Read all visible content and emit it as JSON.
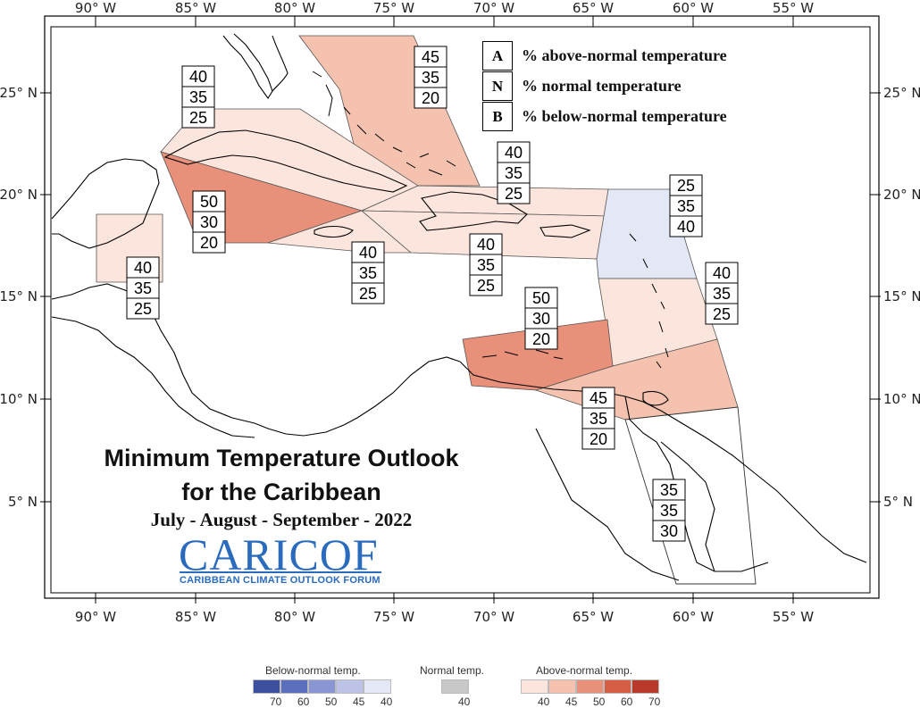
{
  "map": {
    "title_line1": "Minimum Temperature Outlook",
    "title_line2": "for the Caribbean",
    "period": "July - August - September - 2022",
    "logo_main": "CARICOF",
    "logo_sub": "CARIBBEAN CLIMATE OUTLOOK FORUM",
    "lon_labels": [
      "90° W",
      "85° W",
      "80° W",
      "75° W",
      "70° W",
      "65° W",
      "60° W",
      "55° W"
    ],
    "lat_labels": [
      "25° N",
      "20° N",
      "15° N",
      "10° N",
      "5° N"
    ],
    "key": [
      {
        "letter": "A",
        "text": "% above-normal temperature"
      },
      {
        "letter": "N",
        "text": "% normal temperature"
      },
      {
        "letter": "B",
        "text": "% below-normal temperature"
      }
    ],
    "legend": {
      "below_title": "Below-normal temp.",
      "normal_title": "Normal temp.",
      "above_title": "Above-normal temp.",
      "below_values": [
        "70",
        "60",
        "50",
        "45",
        "40"
      ],
      "normal_values": [
        "40"
      ],
      "above_values": [
        "40",
        "45",
        "50",
        "60",
        "70"
      ],
      "below_colors": [
        "#3b4f9e",
        "#5b6fbf",
        "#8a96d4",
        "#bcc3e6",
        "#e3e7f6"
      ],
      "normal_colors": [
        "#c8c8c8"
      ],
      "above_colors": [
        "#fbe5dc",
        "#f4c2ae",
        "#e8907a",
        "#d65e45",
        "#b83a2a"
      ]
    },
    "regions": [
      {
        "name": "bahamas",
        "values": [
          "45",
          "35",
          "20"
        ],
        "color": "#f4c2ae"
      },
      {
        "name": "cuba",
        "values": [
          "40",
          "35",
          "25"
        ],
        "color": "#fbe5dc"
      },
      {
        "name": "cayman-jamaica-sea",
        "values": [
          "50",
          "30",
          "20"
        ],
        "color": "#e8907a"
      },
      {
        "name": "belize",
        "values": [
          "40",
          "35",
          "25"
        ],
        "color": "#fbe5dc"
      },
      {
        "name": "jamaica",
        "values": [
          "40",
          "35",
          "25"
        ],
        "color": "#fbe5dc"
      },
      {
        "name": "hispaniola-north",
        "values": [
          "40",
          "35",
          "25"
        ],
        "color": "#fbe5dc"
      },
      {
        "name": "hispaniola-puerto-rico",
        "values": [
          "40",
          "35",
          "25"
        ],
        "color": "#fbe5dc"
      },
      {
        "name": "leeward-islands",
        "values": [
          "25",
          "35",
          "40"
        ],
        "color": "#e3e7f6"
      },
      {
        "name": "windward-islands",
        "values": [
          "40",
          "35",
          "25"
        ],
        "color": "#fbe5dc"
      },
      {
        "name": "abc-islands",
        "values": [
          "50",
          "30",
          "20"
        ],
        "color": "#e8907a"
      },
      {
        "name": "trinidad-tobago",
        "values": [
          "45",
          "35",
          "20"
        ],
        "color": "#f4c2ae"
      },
      {
        "name": "guianas",
        "values": [
          "35",
          "35",
          "30"
        ],
        "color": "#ffffff"
      }
    ]
  }
}
